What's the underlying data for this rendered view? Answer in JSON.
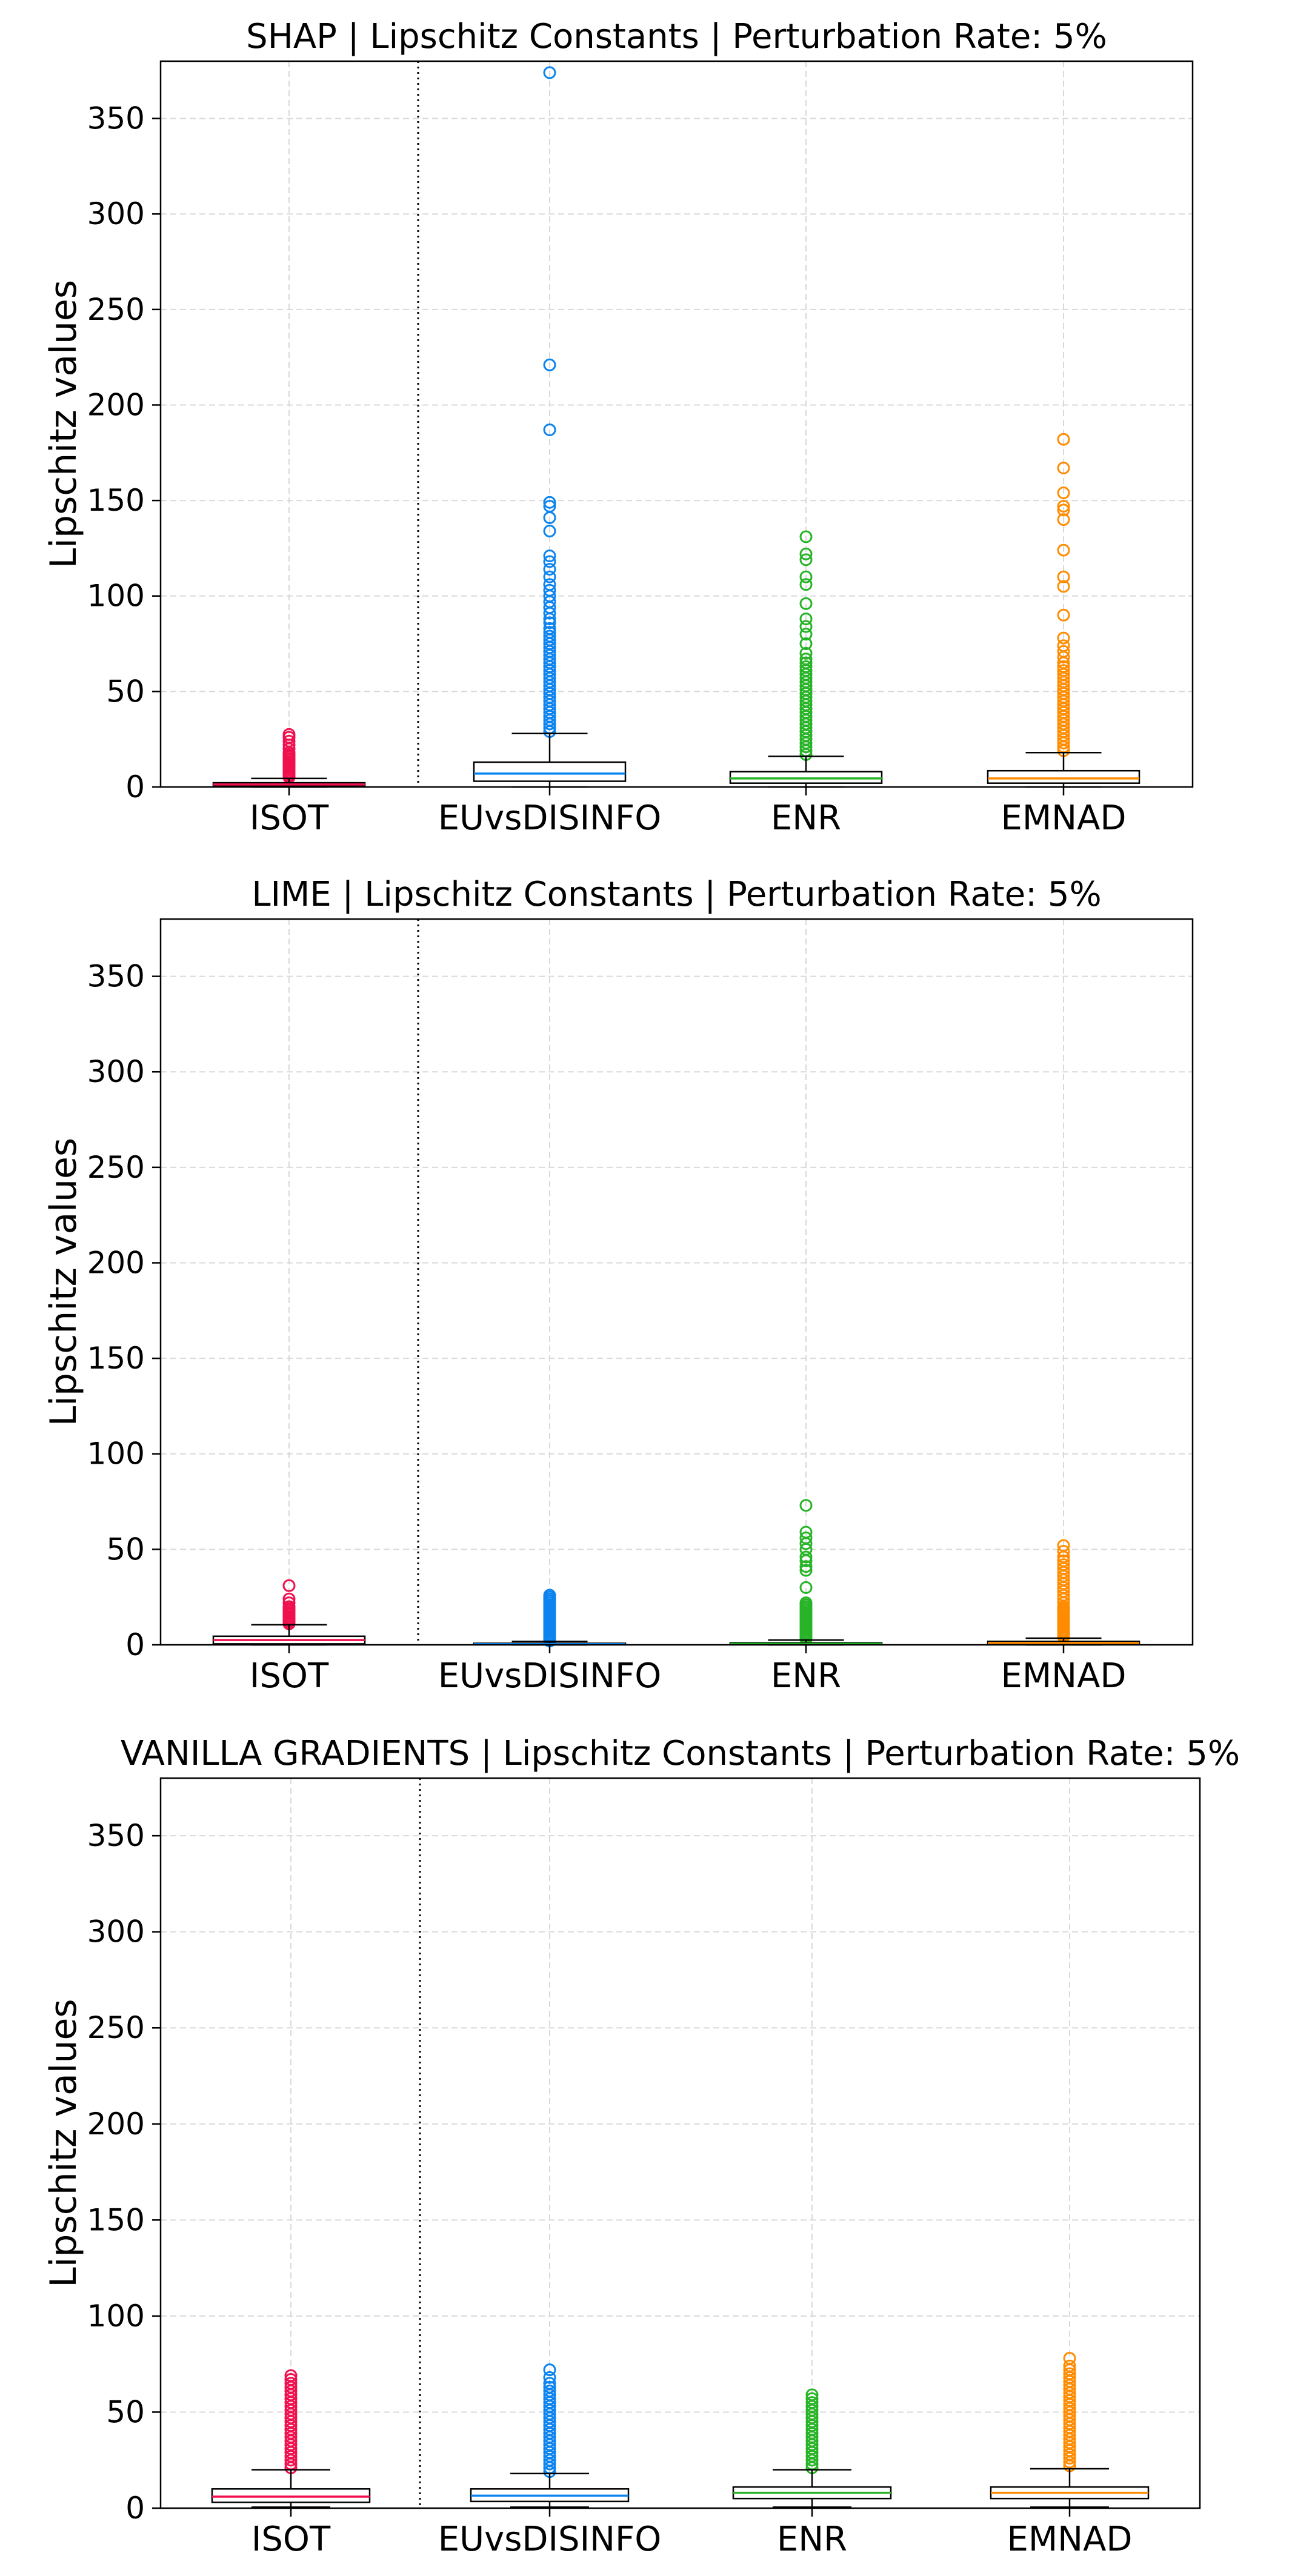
{
  "chart_data": [
    {
      "type": "box",
      "title": "SHAP | Lipschitz Constants | Perturbation Rate: 5%",
      "xlabel": "",
      "ylabel": "Lipschitz values",
      "ylim": [
        0,
        380
      ],
      "yticks": [
        0,
        50,
        100,
        150,
        200,
        250,
        300,
        350
      ],
      "grid": true,
      "categories": [
        "ISOT",
        "EUvsDISINFO",
        "ENR",
        "EMNAD"
      ],
      "boxes": [
        {
          "category": "ISOT",
          "whisker_low": 0,
          "q1": 0.5,
          "median": 1.3,
          "q3": 2.2,
          "whisker_high": 4.5,
          "color": "#f0104e",
          "outliers": [
            5,
            6,
            7,
            8,
            9,
            10,
            11,
            12,
            13,
            14,
            15,
            16,
            17,
            18,
            20,
            22,
            24,
            26,
            27.5
          ]
        },
        {
          "category": "EUvsDISINFO",
          "whisker_low": 0,
          "q1": 3,
          "median": 7,
          "q3": 13,
          "whisker_high": 28,
          "color": "#0b84f0",
          "outliers": [
            29,
            31,
            33,
            35,
            37,
            39,
            41,
            43,
            45,
            47,
            49,
            51,
            53,
            55,
            57,
            59,
            61,
            63,
            65,
            67,
            69,
            71,
            73,
            75,
            77,
            79,
            81,
            83,
            86,
            88,
            91,
            94,
            97,
            100,
            103,
            106,
            110,
            114,
            118,
            121,
            134,
            141,
            147,
            149,
            187,
            221,
            374
          ]
        },
        {
          "category": "ENR",
          "whisker_low": 0,
          "q1": 2,
          "median": 4.5,
          "q3": 8,
          "whisker_high": 16,
          "color": "#27b427",
          "outliers": [
            17,
            19,
            21,
            23,
            25,
            27,
            29,
            31,
            33,
            35,
            37,
            39,
            41,
            43,
            45,
            47,
            49,
            51,
            53,
            55,
            57,
            59,
            61,
            63,
            65,
            67,
            70,
            75,
            80,
            84,
            88,
            96,
            106,
            110,
            119,
            122,
            131
          ]
        },
        {
          "category": "EMNAD",
          "whisker_low": 0,
          "q1": 2,
          "median": 4.5,
          "q3": 8.5,
          "whisker_high": 18,
          "color": "#ff8c00",
          "outliers": [
            19,
            21,
            23,
            25,
            27,
            29,
            31,
            33,
            35,
            37,
            39,
            41,
            43,
            45,
            47,
            49,
            51,
            53,
            55,
            57,
            59,
            61,
            63,
            65,
            68,
            71,
            74,
            78,
            90,
            105,
            110,
            124,
            140,
            145,
            147,
            154,
            167,
            182
          ]
        }
      ]
    },
    {
      "type": "box",
      "title": "LIME | Lipschitz Constants | Perturbation Rate: 5%",
      "xlabel": "",
      "ylabel": "Lipschitz values",
      "ylim": [
        0,
        380
      ],
      "yticks": [
        0,
        50,
        100,
        150,
        200,
        250,
        300,
        350
      ],
      "grid": true,
      "categories": [
        "ISOT",
        "EUvsDISINFO",
        "ENR",
        "EMNAD"
      ],
      "boxes": [
        {
          "category": "ISOT",
          "whisker_low": 0,
          "q1": 0.5,
          "median": 2.5,
          "q3": 4.5,
          "whisker_high": 10.5,
          "color": "#f0104e",
          "outliers": [
            11,
            12,
            13,
            14,
            15,
            16,
            17,
            18,
            19,
            20,
            22,
            24,
            31
          ]
        },
        {
          "category": "EUvsDISINFO",
          "whisker_low": 0,
          "q1": 0.1,
          "median": 0.4,
          "q3": 0.8,
          "whisker_high": 1.8,
          "color": "#0b84f0",
          "outliers": [
            2,
            3,
            4,
            5,
            6,
            7,
            8,
            9,
            10,
            11,
            12,
            13,
            14,
            15,
            16,
            17,
            18,
            19,
            20,
            21,
            22,
            23,
            24,
            25,
            26
          ]
        },
        {
          "category": "ENR",
          "whisker_low": 0,
          "q1": 0.2,
          "median": 0.6,
          "q3": 1.1,
          "whisker_high": 2.5,
          "color": "#27b427",
          "outliers": [
            3,
            4,
            5,
            6,
            7,
            8,
            9,
            10,
            11,
            12,
            13,
            14,
            15,
            16,
            17,
            18,
            19,
            20,
            21,
            22,
            30,
            39,
            41,
            44,
            46,
            50,
            53,
            56,
            59,
            73
          ]
        },
        {
          "category": "EMNAD",
          "whisker_low": 0,
          "q1": 0.3,
          "median": 1,
          "q3": 1.8,
          "whisker_high": 3.5,
          "color": "#ff8c00",
          "outliers": [
            4,
            5,
            6,
            7,
            8,
            9,
            10,
            11,
            12,
            13,
            14,
            15,
            16,
            17,
            18,
            19,
            20,
            22,
            24,
            26,
            28,
            30,
            32,
            34,
            36,
            38,
            40,
            42,
            44,
            46,
            49,
            52
          ]
        }
      ]
    },
    {
      "type": "box",
      "title": "VANILLA GRADIENTS | Lipschitz Constants | Perturbation Rate: 5%",
      "xlabel": "",
      "ylabel": "Lipschitz values",
      "ylim": [
        0,
        380
      ],
      "yticks": [
        0,
        50,
        100,
        150,
        200,
        250,
        300,
        350
      ],
      "grid": true,
      "categories": [
        "ISOT",
        "EUvsDISINFO",
        "ENR",
        "EMNAD"
      ],
      "boxes": [
        {
          "category": "ISOT",
          "whisker_low": 0.5,
          "q1": 3,
          "median": 6,
          "q3": 10,
          "whisker_high": 20,
          "color": "#f0104e",
          "outliers": [
            21,
            23,
            25,
            27,
            29,
            31,
            33,
            35,
            37,
            39,
            41,
            43,
            45,
            47,
            49,
            51,
            53,
            55,
            57,
            59,
            61,
            63,
            65,
            67,
            69
          ]
        },
        {
          "category": "EUvsDISINFO",
          "whisker_low": 0.5,
          "q1": 3.5,
          "median": 6.5,
          "q3": 10,
          "whisker_high": 18,
          "color": "#0b84f0",
          "outliers": [
            19,
            21,
            23,
            25,
            27,
            29,
            31,
            33,
            35,
            37,
            39,
            41,
            43,
            45,
            47,
            49,
            51,
            53,
            55,
            57,
            59,
            61,
            63,
            65,
            68,
            72
          ]
        },
        {
          "category": "ENR",
          "whisker_low": 0.5,
          "q1": 5,
          "median": 8,
          "q3": 11,
          "whisker_high": 20,
          "color": "#27b427",
          "outliers": [
            21,
            23,
            25,
            27,
            29,
            31,
            33,
            35,
            37,
            39,
            41,
            43,
            45,
            47,
            49,
            51,
            53,
            55,
            57,
            59
          ]
        },
        {
          "category": "EMNAD",
          "whisker_low": 0.5,
          "q1": 5,
          "median": 8,
          "q3": 11,
          "whisker_high": 20.5,
          "color": "#ff8c00",
          "outliers": [
            22,
            24,
            26,
            28,
            30,
            32,
            34,
            36,
            38,
            40,
            42,
            44,
            46,
            48,
            50,
            52,
            54,
            56,
            58,
            60,
            62,
            64,
            66,
            68,
            70,
            72,
            74,
            78
          ]
        }
      ]
    }
  ]
}
